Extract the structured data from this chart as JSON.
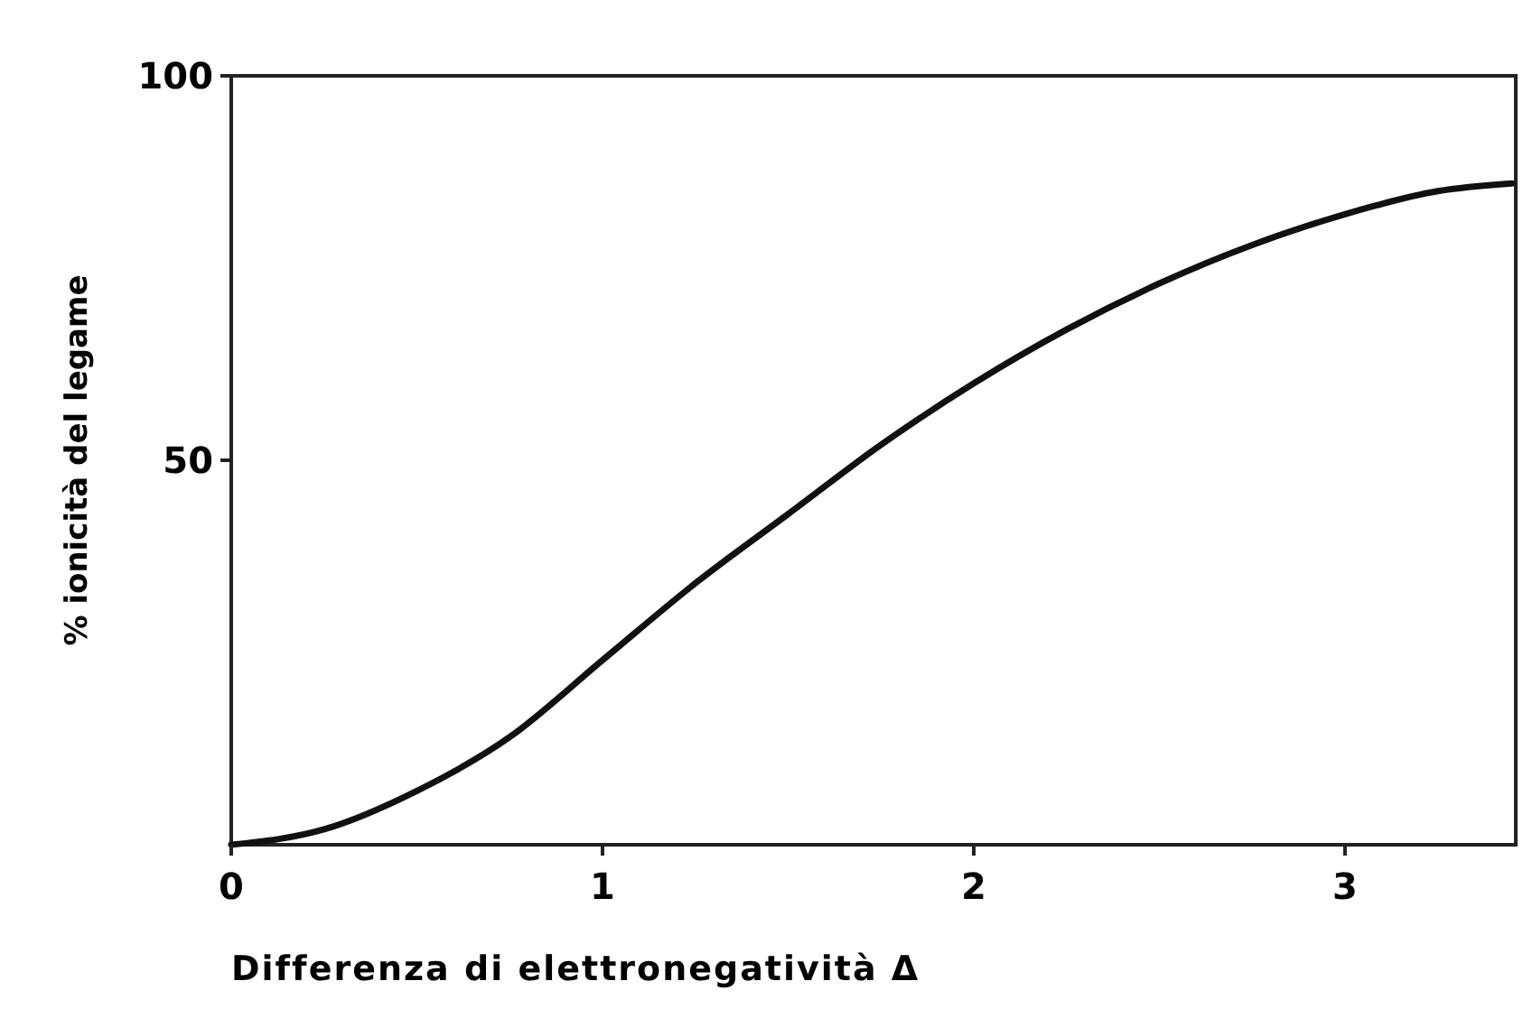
{
  "chart_data": {
    "type": "line",
    "xlabel": "Differenza di elettronegatività Δ",
    "ylabel": "% ionicità del legame",
    "x": [
      0,
      0.25,
      0.5,
      0.75,
      1,
      1.25,
      1.5,
      1.75,
      2,
      2.25,
      2.5,
      2.75,
      3,
      3.25,
      3.45
    ],
    "series": [
      {
        "color": "#111111",
        "values": [
          0,
          2,
          7,
          14,
          24,
          34,
          43,
          52,
          60,
          67,
          73,
          78,
          82,
          85,
          86
        ]
      }
    ],
    "xlim": [
      0,
      3.46
    ],
    "xticks": [
      0,
      1,
      2,
      3
    ],
    "ylim": [
      0,
      100
    ],
    "yticks": [
      50,
      100
    ],
    "grid": false,
    "marker": "none",
    "line_style": "solid"
  }
}
